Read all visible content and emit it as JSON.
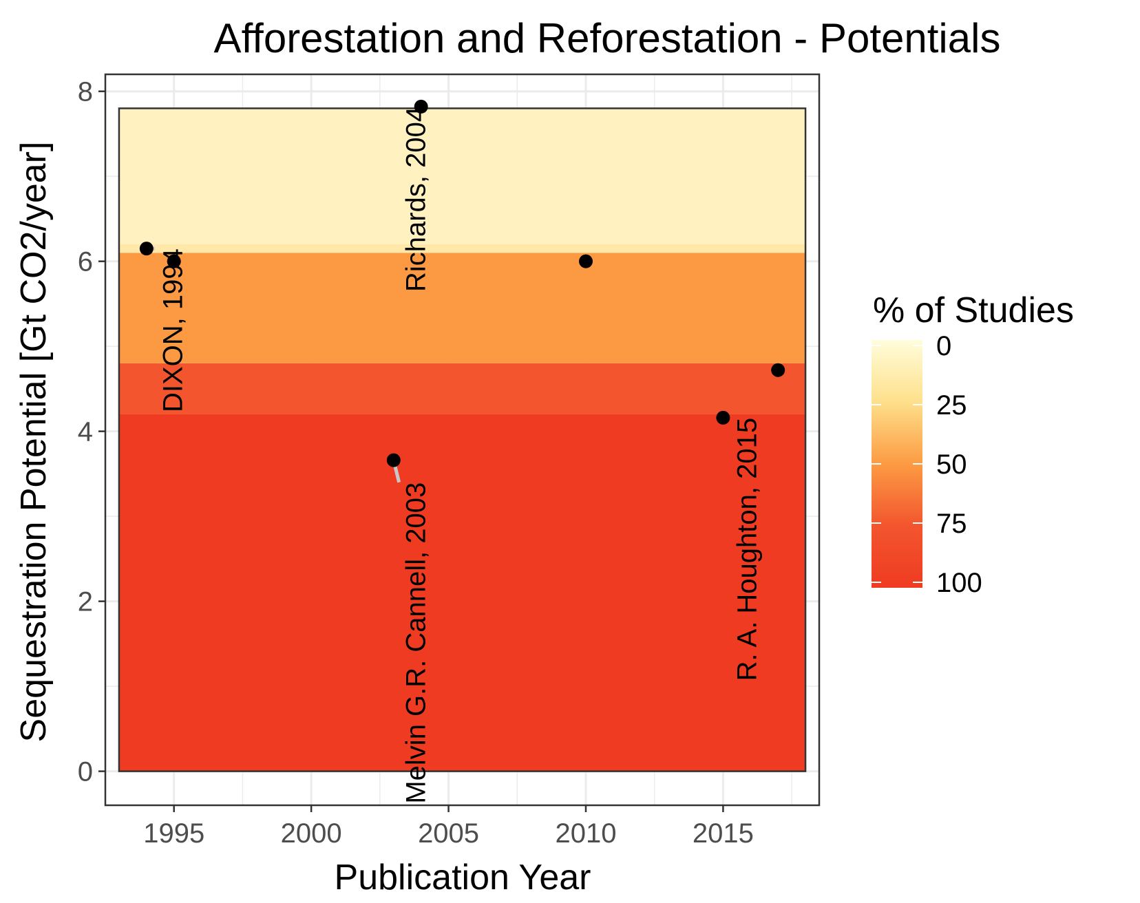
{
  "chart_data": {
    "type": "scatter",
    "title": "Afforestation and Reforestation - Potentials",
    "xlabel": "Publication Year",
    "ylabel": "Sequestration Potential [Gt CO2/year]",
    "xlim": [
      1992.5,
      2018.5
    ],
    "ylim": [
      -0.4,
      8.2
    ],
    "x_ticks": [
      1995,
      2000,
      2005,
      2010,
      2015
    ],
    "y_ticks": [
      0,
      2,
      4,
      6,
      8
    ],
    "grid": true,
    "points": [
      {
        "x": 1994,
        "y": 6.15,
        "label": "DIXON, 1994"
      },
      {
        "x": 1995,
        "y": 6.0,
        "label": ""
      },
      {
        "x": 2003,
        "y": 3.66,
        "label": "Melvin G.R. Cannell, 2003"
      },
      {
        "x": 2004,
        "y": 7.82,
        "label": "Richards, 2004"
      },
      {
        "x": 2010,
        "y": 6.0,
        "label": ""
      },
      {
        "x": 2015,
        "y": 4.16,
        "label": "R. A. Houghton, 2015"
      },
      {
        "x": 2017,
        "y": 4.72,
        "label": ""
      }
    ],
    "bands": [
      {
        "ymin": 0.0,
        "ymax": 4.2,
        "percent": 100,
        "color": "#ef3b22"
      },
      {
        "ymin": 4.2,
        "ymax": 4.8,
        "percent": 86,
        "color": "#f3552e"
      },
      {
        "ymin": 4.8,
        "ymax": 6.1,
        "percent": 57,
        "color": "#fb9a42"
      },
      {
        "ymin": 6.1,
        "ymax": 6.2,
        "percent": 29,
        "color": "#ffe8a8"
      },
      {
        "ymin": 6.2,
        "ymax": 7.8,
        "percent": 14,
        "color": "#fff2c0"
      }
    ],
    "band_x_range": [
      1993,
      2018
    ],
    "legend": {
      "title": "% of Studies",
      "position": "right",
      "labels": [
        "0",
        "25",
        "50",
        "75",
        "100"
      ],
      "colors": [
        "#fffddb",
        "#fee08b",
        "#fc9b43",
        "#f3552e",
        "#ef3b22"
      ]
    }
  }
}
